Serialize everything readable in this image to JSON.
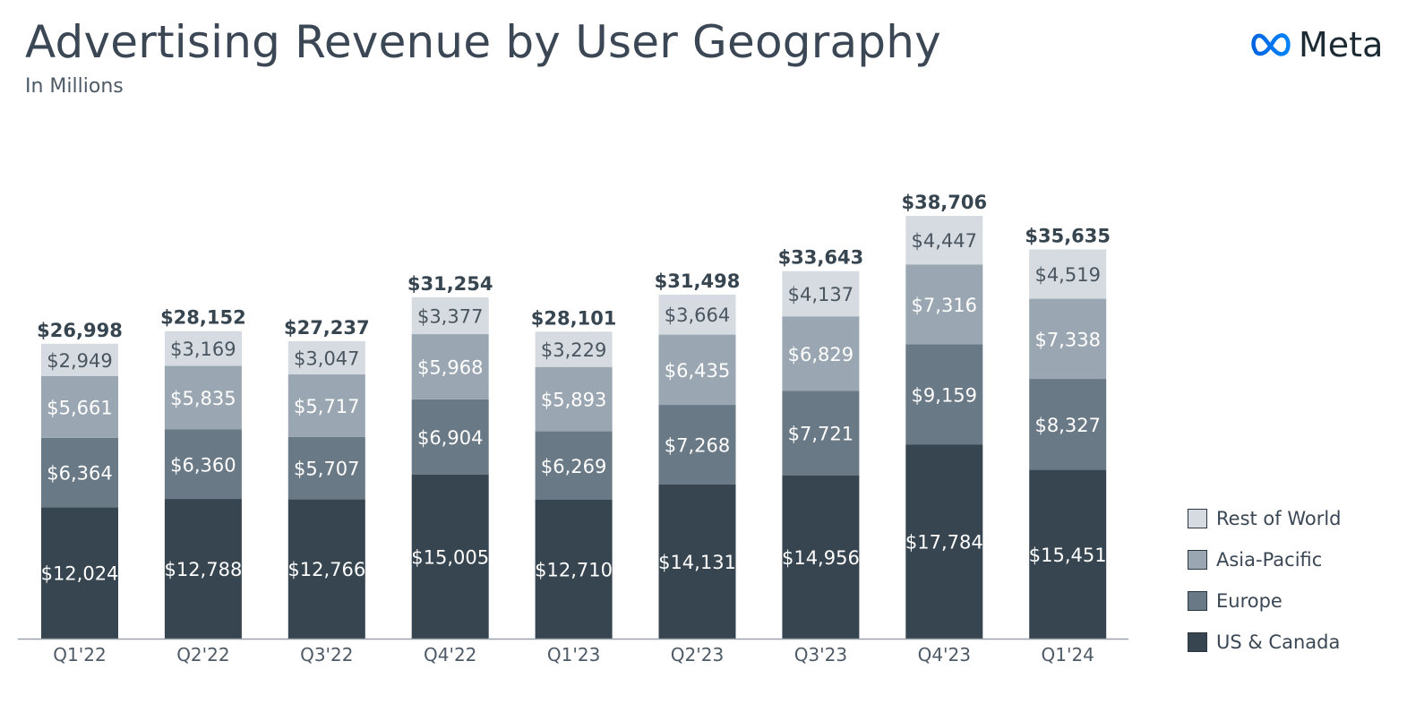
{
  "header": {
    "title": "Advertising Revenue by User Geography",
    "subtitle": "In Millions",
    "logo_text": "Meta",
    "logo_color": "#0668E1"
  },
  "chart_data": {
    "type": "bar",
    "stacked": true,
    "title": "Advertising Revenue by User Geography",
    "subtitle": "In Millions",
    "categories": [
      "Q1'22",
      "Q2'22",
      "Q3'22",
      "Q4'22",
      "Q1'23",
      "Q2'23",
      "Q3'23",
      "Q4'23",
      "Q1'24"
    ],
    "series": [
      {
        "name": "US & Canada",
        "color": "#36454f",
        "label_color": "#ffffff",
        "values": [
          12024,
          12788,
          12766,
          15005,
          12710,
          14131,
          14956,
          17784,
          15451
        ]
      },
      {
        "name": "Europe",
        "color": "#6a7986",
        "label_color": "#ffffff",
        "values": [
          6364,
          6360,
          5707,
          6904,
          6269,
          7268,
          7721,
          9159,
          8327
        ]
      },
      {
        "name": "Asia-Pacific",
        "color": "#9aa7b2",
        "label_color": "#ffffff",
        "values": [
          5661,
          5835,
          5717,
          5968,
          5893,
          6435,
          6829,
          7316,
          7338
        ]
      },
      {
        "name": "Rest of World",
        "color": "#d5dbe0",
        "label_color": "#4a5560",
        "values": [
          2949,
          3169,
          3047,
          3377,
          3229,
          3664,
          4137,
          4447,
          4519
        ]
      }
    ],
    "segment_labels": [
      [
        "$12,024",
        "$12,788",
        "$12,766",
        "$15,005",
        "$12,710",
        "$14,131",
        "$14,956",
        "$17,784",
        "$15,451"
      ],
      [
        "$6,364",
        "$6,360",
        "$5,707",
        "$6,904",
        "$6,269",
        "$7,268",
        "$7,721",
        "$9,159",
        "$8,327"
      ],
      [
        "$5,661",
        "$5,835",
        "$5,717",
        "$5,968",
        "$5,893",
        "$6,435",
        "$6,829",
        "$7,316",
        "$7,338"
      ],
      [
        "$2,949",
        "$3,169",
        "$3,047",
        "$3,377",
        "$3,229",
        "$3,664",
        "$4,137",
        "$4,447",
        "$4,519"
      ]
    ],
    "totals": [
      26998,
      28152,
      27237,
      31254,
      28101,
      31498,
      33643,
      38706,
      35635
    ],
    "total_labels": [
      "$26,998",
      "$28,152",
      "$27,237",
      "$31,254",
      "$28,101",
      "$31,498",
      "$33,643",
      "$38,706",
      "$35,635"
    ],
    "ylim": [
      0,
      38706
    ],
    "xlabel": "",
    "ylabel": "",
    "grid": false,
    "legend_position": "right-bottom",
    "legend_order": [
      "Rest of World",
      "Asia-Pacific",
      "Europe",
      "US & Canada"
    ]
  }
}
